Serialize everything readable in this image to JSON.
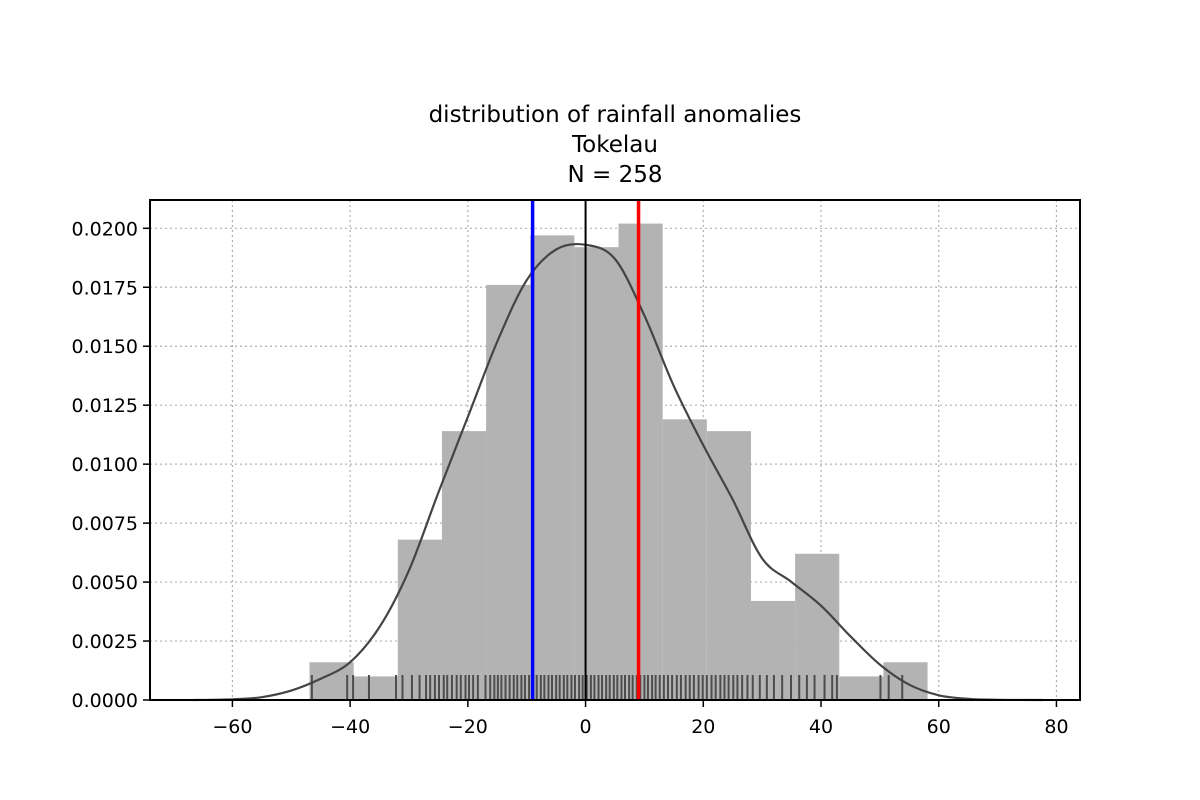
{
  "chart_data": {
    "type": "histogram",
    "title_lines": [
      "distribution of rainfall anomalies",
      "Tokelau",
      "N = 258"
    ],
    "xlabel": "",
    "ylabel": "",
    "xlim": [
      -74,
      84
    ],
    "ylim": [
      0,
      0.0212
    ],
    "x_ticks": [
      -60,
      -40,
      -20,
      0,
      20,
      40,
      60,
      80
    ],
    "x_tick_labels": [
      "−60",
      "−40",
      "−20",
      "0",
      "20",
      "40",
      "60",
      "80"
    ],
    "y_ticks": [
      0,
      0.0025,
      0.005,
      0.0075,
      0.01,
      0.0125,
      0.015,
      0.0175,
      0.02
    ],
    "y_tick_labels": [
      "0.0000",
      "0.0025",
      "0.0050",
      "0.0075",
      "0.0100",
      "0.0125",
      "0.0150",
      "0.0175",
      "0.0200"
    ],
    "grid": true,
    "histogram": {
      "color": "#b3b3b3",
      "bins": [
        {
          "x0": -46.9,
          "x1": -39.4,
          "value": 0.0016
        },
        {
          "x0": -39.4,
          "x1": -31.9,
          "value": 0.001
        },
        {
          "x0": -31.9,
          "x1": -24.4,
          "value": 0.0068
        },
        {
          "x0": -24.4,
          "x1": -16.9,
          "value": 0.0114
        },
        {
          "x0": -16.9,
          "x1": -9.4,
          "value": 0.0176
        },
        {
          "x0": -9.4,
          "x1": -1.9,
          "value": 0.0197
        },
        {
          "x0": -1.9,
          "x1": 5.6,
          "value": 0.0192
        },
        {
          "x0": 5.6,
          "x1": 13.1,
          "value": 0.0202
        },
        {
          "x0": 13.1,
          "x1": 20.6,
          "value": 0.0119
        },
        {
          "x0": 20.6,
          "x1": 28.1,
          "value": 0.0114
        },
        {
          "x0": 28.1,
          "x1": 35.6,
          "value": 0.0042
        },
        {
          "x0": 35.6,
          "x1": 43.1,
          "value": 0.0062
        },
        {
          "x0": 43.1,
          "x1": 50.6,
          "value": 0.001
        },
        {
          "x0": 50.6,
          "x1": 58.1,
          "value": 0.0016
        }
      ]
    },
    "kde": {
      "color": "#444444",
      "x": [
        -66.6,
        -60,
        -55,
        -50,
        -45,
        -40,
        -35,
        -30,
        -25,
        -20,
        -15,
        -10,
        -5,
        0,
        5,
        10,
        15,
        20,
        25,
        30,
        35,
        40,
        45,
        50,
        55,
        60,
        65,
        70,
        77.7
      ],
      "y": [
        0.0,
        3e-05,
        0.00012,
        0.0004,
        0.0009,
        0.0016,
        0.0031,
        0.0055,
        0.0088,
        0.012,
        0.0152,
        0.0178,
        0.0191,
        0.0193,
        0.0187,
        0.0163,
        0.0133,
        0.0108,
        0.0085,
        0.006,
        0.005,
        0.004,
        0.0027,
        0.0015,
        0.00065,
        0.0002,
        5e-05,
        1e-05,
        0.0
      ]
    },
    "rug": {
      "color": "#4d4d4d",
      "height_fraction": 0.05,
      "values": [
        -46.5,
        -40.5,
        -39.5,
        -36.8,
        -32.2,
        -31.1,
        -29.5,
        -28.2,
        -27.1,
        -26.4,
        -25.6,
        -24.9,
        -24.1,
        -23.5,
        -22.7,
        -21.9,
        -21.2,
        -20.4,
        -19.8,
        -19.1,
        -18.3,
        -17.0,
        -16.2,
        -15.5,
        -14.9,
        -14.3,
        -13.6,
        -12.9,
        -12.2,
        -11.6,
        -10.9,
        -10.3,
        -9.6,
        -8.9,
        -8.3,
        -7.6,
        -7.0,
        -6.3,
        -5.7,
        -5.0,
        -4.4,
        -3.7,
        -3.1,
        -2.4,
        -1.8,
        -1.1,
        -0.5,
        0.2,
        0.9,
        1.5,
        2.2,
        2.8,
        3.5,
        4.1,
        4.8,
        5.4,
        6.1,
        6.7,
        7.4,
        8.0,
        8.7,
        9.3,
        10.0,
        10.6,
        11.3,
        11.9,
        12.6,
        13.3,
        14.0,
        14.7,
        15.5,
        16.2,
        17.0,
        17.7,
        18.4,
        19.2,
        19.9,
        20.6,
        21.4,
        22.1,
        22.9,
        23.6,
        24.3,
        25.1,
        25.8,
        26.6,
        27.5,
        28.4,
        29.6,
        30.8,
        32.0,
        33.4,
        34.9,
        36.3,
        37.6,
        38.9,
        40.6,
        41.9,
        42.7,
        50.1,
        51.5,
        53.8
      ]
    },
    "vlines": [
      {
        "x": -9.0,
        "color": "#0000ff"
      },
      {
        "x": 0.0,
        "color": "#000000"
      },
      {
        "x": 9.0,
        "color": "#ff0000"
      }
    ]
  }
}
